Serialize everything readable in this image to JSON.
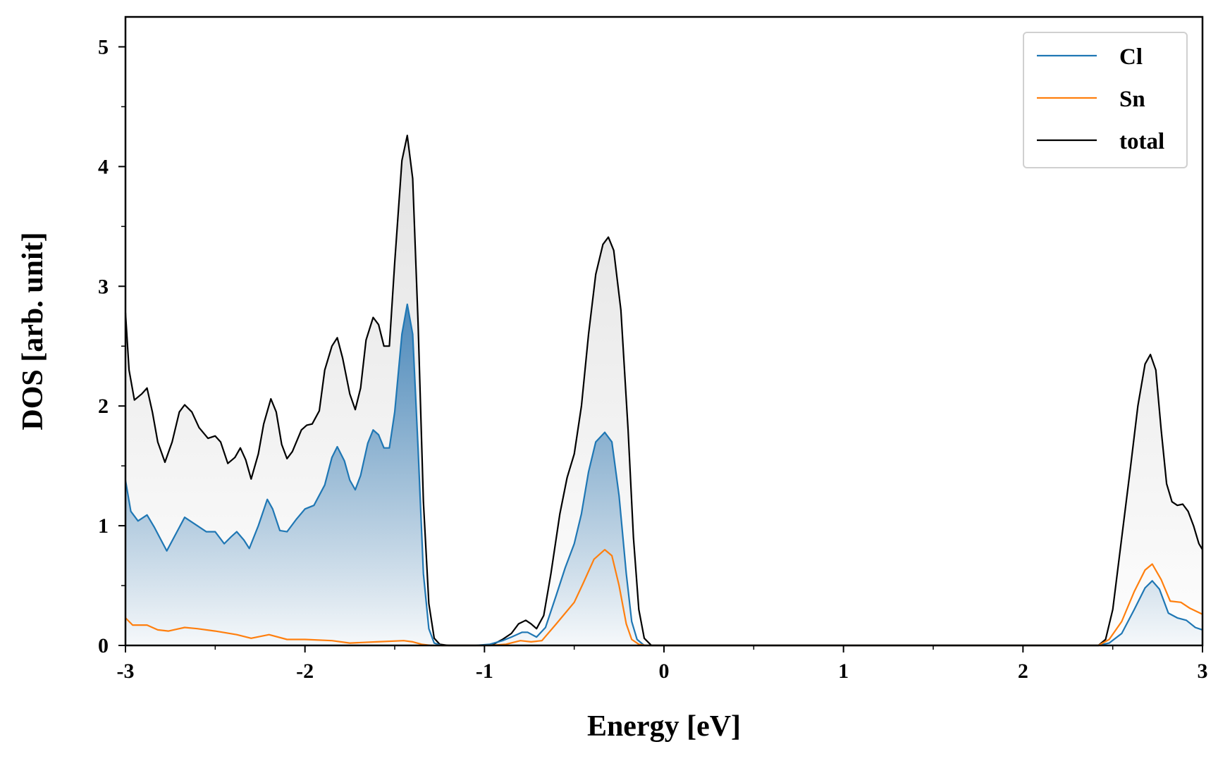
{
  "chart_data": {
    "type": "line",
    "title": "",
    "xlabel": "Energy [eV]",
    "ylabel": "DOS [arb. unit]",
    "xlim": [
      -3,
      3
    ],
    "ylim": [
      0,
      5.25
    ],
    "xticks": [
      -3,
      -2,
      -1,
      0,
      1,
      2,
      3
    ],
    "yticks": [
      0,
      1,
      2,
      3,
      4,
      5
    ],
    "xtick_labels": [
      "-3",
      "-2",
      "-1",
      "0",
      "1",
      "2",
      "3"
    ],
    "ytick_labels": [
      "0",
      "1",
      "2",
      "3",
      "4",
      "5"
    ],
    "grid": false,
    "legend_position": "top-right",
    "series": [
      {
        "name": "Cl",
        "color": "#1f77b4",
        "fill": "gradient",
        "points": [
          [
            -3.0,
            1.38
          ],
          [
            -2.97,
            1.12
          ],
          [
            -2.93,
            1.04
          ],
          [
            -2.88,
            1.09
          ],
          [
            -2.84,
            0.99
          ],
          [
            -2.77,
            0.79
          ],
          [
            -2.72,
            0.93
          ],
          [
            -2.67,
            1.07
          ],
          [
            -2.6,
            1.0
          ],
          [
            -2.55,
            0.95
          ],
          [
            -2.5,
            0.95
          ],
          [
            -2.45,
            0.85
          ],
          [
            -2.41,
            0.91
          ],
          [
            -2.38,
            0.95
          ],
          [
            -2.34,
            0.88
          ],
          [
            -2.31,
            0.81
          ],
          [
            -2.26,
            1.0
          ],
          [
            -2.21,
            1.22
          ],
          [
            -2.18,
            1.14
          ],
          [
            -2.14,
            0.96
          ],
          [
            -2.1,
            0.95
          ],
          [
            -2.05,
            1.05
          ],
          [
            -2.0,
            1.14
          ],
          [
            -1.95,
            1.17
          ],
          [
            -1.89,
            1.34
          ],
          [
            -1.85,
            1.57
          ],
          [
            -1.82,
            1.66
          ],
          [
            -1.78,
            1.54
          ],
          [
            -1.75,
            1.38
          ],
          [
            -1.72,
            1.3
          ],
          [
            -1.69,
            1.42
          ],
          [
            -1.65,
            1.69
          ],
          [
            -1.62,
            1.8
          ],
          [
            -1.59,
            1.76
          ],
          [
            -1.56,
            1.65
          ],
          [
            -1.53,
            1.65
          ],
          [
            -1.5,
            1.95
          ],
          [
            -1.46,
            2.6
          ],
          [
            -1.43,
            2.85
          ],
          [
            -1.4,
            2.6
          ],
          [
            -1.37,
            1.65
          ],
          [
            -1.34,
            0.6
          ],
          [
            -1.31,
            0.14
          ],
          [
            -1.28,
            0.02
          ],
          [
            -1.24,
            0.0
          ],
          [
            -1.15,
            0.0
          ],
          [
            -1.05,
            0.0
          ],
          [
            -0.97,
            0.01
          ],
          [
            -0.9,
            0.04
          ],
          [
            -0.85,
            0.07
          ],
          [
            -0.79,
            0.11
          ],
          [
            -0.76,
            0.11
          ],
          [
            -0.71,
            0.07
          ],
          [
            -0.66,
            0.15
          ],
          [
            -0.6,
            0.42
          ],
          [
            -0.55,
            0.65
          ],
          [
            -0.5,
            0.85
          ],
          [
            -0.46,
            1.1
          ],
          [
            -0.42,
            1.45
          ],
          [
            -0.38,
            1.7
          ],
          [
            -0.33,
            1.78
          ],
          [
            -0.29,
            1.7
          ],
          [
            -0.25,
            1.25
          ],
          [
            -0.21,
            0.6
          ],
          [
            -0.18,
            0.2
          ],
          [
            -0.15,
            0.05
          ],
          [
            -0.11,
            0.0
          ],
          [
            0.0,
            0.0
          ],
          [
            1.0,
            0.0
          ],
          [
            2.0,
            0.0
          ],
          [
            2.42,
            0.0
          ],
          [
            2.48,
            0.02
          ],
          [
            2.55,
            0.1
          ],
          [
            2.62,
            0.3
          ],
          [
            2.68,
            0.48
          ],
          [
            2.72,
            0.54
          ],
          [
            2.76,
            0.47
          ],
          [
            2.81,
            0.27
          ],
          [
            2.86,
            0.23
          ],
          [
            2.91,
            0.21
          ],
          [
            2.96,
            0.15
          ],
          [
            3.0,
            0.13
          ]
        ]
      },
      {
        "name": "Sn",
        "color": "#ff7f0e",
        "fill": "none",
        "points": [
          [
            -3.0,
            0.23
          ],
          [
            -2.96,
            0.17
          ],
          [
            -2.92,
            0.17
          ],
          [
            -2.88,
            0.17
          ],
          [
            -2.82,
            0.13
          ],
          [
            -2.76,
            0.12
          ],
          [
            -2.67,
            0.15
          ],
          [
            -2.6,
            0.14
          ],
          [
            -2.5,
            0.12
          ],
          [
            -2.38,
            0.09
          ],
          [
            -2.3,
            0.06
          ],
          [
            -2.2,
            0.09
          ],
          [
            -2.1,
            0.05
          ],
          [
            -2.0,
            0.05
          ],
          [
            -1.85,
            0.04
          ],
          [
            -1.75,
            0.02
          ],
          [
            -1.6,
            0.03
          ],
          [
            -1.45,
            0.04
          ],
          [
            -1.4,
            0.03
          ],
          [
            -1.35,
            0.01
          ],
          [
            -1.3,
            0.0
          ],
          [
            -1.1,
            0.0
          ],
          [
            -0.97,
            0.0
          ],
          [
            -0.88,
            0.01
          ],
          [
            -0.8,
            0.04
          ],
          [
            -0.74,
            0.03
          ],
          [
            -0.68,
            0.04
          ],
          [
            -0.6,
            0.18
          ],
          [
            -0.5,
            0.36
          ],
          [
            -0.45,
            0.52
          ],
          [
            -0.39,
            0.72
          ],
          [
            -0.33,
            0.8
          ],
          [
            -0.29,
            0.75
          ],
          [
            -0.25,
            0.5
          ],
          [
            -0.21,
            0.18
          ],
          [
            -0.18,
            0.05
          ],
          [
            -0.14,
            0.01
          ],
          [
            -0.1,
            0.0
          ],
          [
            0.0,
            0.0
          ],
          [
            1.0,
            0.0
          ],
          [
            2.0,
            0.0
          ],
          [
            2.42,
            0.0
          ],
          [
            2.48,
            0.05
          ],
          [
            2.55,
            0.2
          ],
          [
            2.62,
            0.45
          ],
          [
            2.68,
            0.63
          ],
          [
            2.72,
            0.68
          ],
          [
            2.77,
            0.55
          ],
          [
            2.82,
            0.37
          ],
          [
            2.88,
            0.36
          ],
          [
            2.93,
            0.31
          ],
          [
            3.0,
            0.26
          ]
        ]
      },
      {
        "name": "total",
        "color": "#000000",
        "fill": "gradient",
        "points": [
          [
            -3.0,
            2.78
          ],
          [
            -2.98,
            2.3
          ],
          [
            -2.95,
            2.05
          ],
          [
            -2.91,
            2.1
          ],
          [
            -2.88,
            2.15
          ],
          [
            -2.85,
            1.95
          ],
          [
            -2.82,
            1.7
          ],
          [
            -2.78,
            1.53
          ],
          [
            -2.74,
            1.7
          ],
          [
            -2.7,
            1.95
          ],
          [
            -2.67,
            2.01
          ],
          [
            -2.63,
            1.95
          ],
          [
            -2.59,
            1.82
          ],
          [
            -2.54,
            1.73
          ],
          [
            -2.5,
            1.75
          ],
          [
            -2.47,
            1.7
          ],
          [
            -2.43,
            1.52
          ],
          [
            -2.39,
            1.57
          ],
          [
            -2.36,
            1.65
          ],
          [
            -2.33,
            1.55
          ],
          [
            -2.3,
            1.39
          ],
          [
            -2.26,
            1.6
          ],
          [
            -2.23,
            1.85
          ],
          [
            -2.19,
            2.06
          ],
          [
            -2.16,
            1.95
          ],
          [
            -2.13,
            1.68
          ],
          [
            -2.1,
            1.56
          ],
          [
            -2.07,
            1.62
          ],
          [
            -2.02,
            1.8
          ],
          [
            -1.99,
            1.84
          ],
          [
            -1.96,
            1.85
          ],
          [
            -1.92,
            1.96
          ],
          [
            -1.89,
            2.3
          ],
          [
            -1.85,
            2.5
          ],
          [
            -1.82,
            2.57
          ],
          [
            -1.79,
            2.4
          ],
          [
            -1.75,
            2.1
          ],
          [
            -1.72,
            1.97
          ],
          [
            -1.69,
            2.15
          ],
          [
            -1.66,
            2.55
          ],
          [
            -1.62,
            2.74
          ],
          [
            -1.59,
            2.68
          ],
          [
            -1.56,
            2.5
          ],
          [
            -1.53,
            2.5
          ],
          [
            -1.5,
            3.2
          ],
          [
            -1.46,
            4.05
          ],
          [
            -1.43,
            4.26
          ],
          [
            -1.4,
            3.9
          ],
          [
            -1.37,
            2.7
          ],
          [
            -1.34,
            1.2
          ],
          [
            -1.31,
            0.35
          ],
          [
            -1.28,
            0.06
          ],
          [
            -1.25,
            0.01
          ],
          [
            -1.2,
            0.0
          ],
          [
            -1.1,
            0.0
          ],
          [
            -1.0,
            0.0
          ],
          [
            -0.95,
            0.01
          ],
          [
            -0.9,
            0.05
          ],
          [
            -0.85,
            0.1
          ],
          [
            -0.81,
            0.18
          ],
          [
            -0.77,
            0.21
          ],
          [
            -0.74,
            0.18
          ],
          [
            -0.71,
            0.14
          ],
          [
            -0.67,
            0.25
          ],
          [
            -0.63,
            0.6
          ],
          [
            -0.58,
            1.1
          ],
          [
            -0.54,
            1.4
          ],
          [
            -0.5,
            1.6
          ],
          [
            -0.46,
            2.0
          ],
          [
            -0.42,
            2.6
          ],
          [
            -0.38,
            3.1
          ],
          [
            -0.34,
            3.35
          ],
          [
            -0.31,
            3.41
          ],
          [
            -0.28,
            3.3
          ],
          [
            -0.24,
            2.8
          ],
          [
            -0.2,
            1.8
          ],
          [
            -0.17,
            0.9
          ],
          [
            -0.14,
            0.3
          ],
          [
            -0.11,
            0.06
          ],
          [
            -0.07,
            0.0
          ],
          [
            0.0,
            0.0
          ],
          [
            1.0,
            0.0
          ],
          [
            2.0,
            0.0
          ],
          [
            2.42,
            0.0
          ],
          [
            2.46,
            0.05
          ],
          [
            2.5,
            0.3
          ],
          [
            2.55,
            0.9
          ],
          [
            2.6,
            1.5
          ],
          [
            2.64,
            2.0
          ],
          [
            2.68,
            2.35
          ],
          [
            2.71,
            2.43
          ],
          [
            2.74,
            2.3
          ],
          [
            2.77,
            1.8
          ],
          [
            2.8,
            1.35
          ],
          [
            2.83,
            1.2
          ],
          [
            2.86,
            1.17
          ],
          [
            2.89,
            1.18
          ],
          [
            2.92,
            1.12
          ],
          [
            2.95,
            1.0
          ],
          [
            2.98,
            0.85
          ],
          [
            3.0,
            0.8
          ]
        ]
      }
    ]
  }
}
